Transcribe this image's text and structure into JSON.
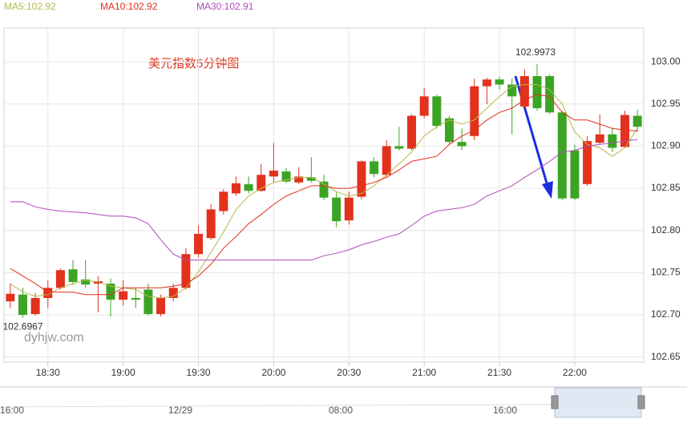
{
  "chart_data": {
    "type": "candlestick",
    "title": "美元指数5分钟图",
    "watermark": "dyhjw.com",
    "categories": [
      null,
      null,
      null,
      "18:30",
      null,
      null,
      null,
      null,
      null,
      "19:00",
      null,
      null,
      null,
      null,
      null,
      "19:30",
      null,
      null,
      null,
      null,
      null,
      "20:00",
      null,
      null,
      null,
      null,
      null,
      "20:30",
      null,
      null,
      null,
      null,
      null,
      "21:00",
      null,
      null,
      null,
      null,
      null,
      "21:30",
      null,
      null,
      null,
      null,
      null,
      "22:00",
      null,
      null,
      null,
      null,
      null
    ],
    "open": [
      102.716,
      102.724,
      102.701,
      102.72,
      102.732,
      102.754,
      102.742,
      102.737,
      102.737,
      102.718,
      102.72,
      102.73,
      102.701,
      102.72,
      102.732,
      102.772,
      102.791,
      102.823,
      102.844,
      102.855,
      102.847,
      102.864,
      102.87,
      102.857,
      102.863,
      102.858,
      102.839,
      102.812,
      102.84,
      102.882,
      102.866,
      102.9,
      102.897,
      102.936,
      102.959,
      102.933,
      102.905,
      102.912,
      102.971,
      102.979,
      102.973,
      102.947,
      102.983,
      102.983,
      102.94,
      102.895,
      102.855,
      102.904,
      102.914,
      102.899,
      102.936
    ],
    "high": [
      102.737,
      102.732,
      102.726,
      102.741,
      102.755,
      102.765,
      102.765,
      102.746,
      102.743,
      102.741,
      102.732,
      102.737,
      102.724,
      102.737,
      102.779,
      102.806,
      102.831,
      102.849,
      102.864,
      102.864,
      102.879,
      102.904,
      102.874,
      102.875,
      102.887,
      102.866,
      102.846,
      102.846,
      102.883,
      102.887,
      102.907,
      102.923,
      102.938,
      102.969,
      102.961,
      102.936,
      102.921,
      102.98,
      102.981,
      102.982,
      102.98,
      102.991,
      102.9973,
      102.985,
      102.942,
      102.902,
      102.912,
      102.938,
      102.921,
      102.942,
      102.943
    ],
    "low": [
      102.708,
      102.6967,
      102.699,
      102.708,
      102.73,
      102.736,
      102.732,
      102.703,
      102.698,
      102.711,
      102.708,
      102.699,
      102.698,
      102.716,
      102.73,
      102.768,
      102.789,
      102.819,
      102.841,
      102.844,
      102.846,
      102.857,
      102.856,
      102.855,
      102.857,
      102.836,
      102.804,
      102.807,
      102.837,
      102.863,
      102.864,
      102.895,
      102.895,
      102.933,
      102.921,
      102.902,
      102.895,
      102.907,
      102.95,
      102.967,
      102.914,
      102.945,
      102.942,
      102.938,
      102.836,
      102.836,
      102.853,
      102.902,
      102.893,
      102.898,
      102.917
    ],
    "close": [
      102.725,
      102.7,
      102.72,
      102.732,
      102.753,
      102.739,
      102.736,
      102.74,
      102.718,
      102.728,
      102.718,
      102.701,
      102.72,
      102.732,
      102.772,
      102.796,
      102.825,
      102.846,
      102.856,
      102.847,
      102.866,
      102.871,
      102.858,
      102.864,
      102.859,
      102.839,
      102.811,
      102.839,
      102.882,
      102.867,
      102.9,
      102.897,
      102.936,
      102.959,
      102.924,
      102.905,
      102.9,
      102.971,
      102.979,
      102.973,
      102.959,
      102.983,
      102.945,
      102.94,
      102.838,
      102.838,
      102.906,
      102.914,
      102.898,
      102.937,
      102.923
    ],
    "up_color": "#e2321d",
    "down_color": "#3ca424",
    "series": [
      {
        "name": "MA5:102.92",
        "color": "#b5b94a",
        "values": [
          102.737,
          102.727,
          102.722,
          102.724,
          102.732,
          102.737,
          102.741,
          102.739,
          102.734,
          102.732,
          102.73,
          102.722,
          102.72,
          102.722,
          102.732,
          102.751,
          102.774,
          102.798,
          102.825,
          102.841,
          102.85,
          102.857,
          102.86,
          102.863,
          102.863,
          102.855,
          102.846,
          102.841,
          102.844,
          102.853,
          102.866,
          102.879,
          102.893,
          102.912,
          102.923,
          102.931,
          102.926,
          102.931,
          102.945,
          102.959,
          102.971,
          102.973,
          102.973,
          102.967,
          102.95,
          102.917,
          102.902,
          102.898,
          102.888,
          102.898,
          102.921
        ]
      },
      {
        "name": "MA10:102.92",
        "color": "#e0301e",
        "values": [
          102.755,
          102.746,
          102.737,
          102.727,
          102.727,
          102.727,
          102.724,
          102.724,
          102.724,
          102.732,
          102.732,
          102.732,
          102.732,
          102.734,
          102.737,
          102.746,
          102.76,
          102.779,
          102.793,
          102.808,
          102.819,
          102.831,
          102.841,
          102.847,
          102.853,
          102.853,
          102.85,
          102.85,
          102.853,
          102.857,
          102.863,
          102.872,
          102.882,
          102.885,
          102.888,
          102.902,
          102.912,
          102.919,
          102.931,
          102.94,
          102.945,
          102.955,
          102.961,
          102.959,
          102.94,
          102.931,
          102.931,
          102.926,
          102.921,
          102.919,
          102.918
        ]
      },
      {
        "name": "MA30:102.91",
        "color": "#b04cb8",
        "values": [
          102.834,
          102.834,
          102.828,
          102.825,
          102.823,
          102.822,
          102.821,
          102.819,
          102.817,
          102.817,
          102.815,
          102.808,
          102.789,
          102.772,
          102.765,
          102.765,
          102.765,
          102.765,
          102.765,
          102.765,
          102.765,
          102.765,
          102.765,
          102.765,
          102.765,
          102.77,
          102.773,
          102.777,
          102.783,
          102.787,
          102.792,
          102.796,
          102.806,
          102.817,
          102.823,
          102.825,
          102.827,
          102.831,
          102.841,
          102.847,
          102.853,
          102.863,
          102.872,
          102.882,
          102.893,
          102.895,
          102.9,
          102.902,
          102.904,
          102.906,
          102.908
        ]
      }
    ],
    "ylim": [
      102.644,
      103.04
    ],
    "yticks": [
      102.65,
      {
        "value": 102.7,
        "label": "102.70"
      },
      102.75,
      {
        "value": 102.8,
        "label": "102.80"
      },
      102.85,
      {
        "value": 102.9,
        "label": "102.90"
      },
      102.95,
      {
        "value": 103,
        "label": "103.00"
      }
    ],
    "grid": true,
    "navigator_labels": [
      "16:00",
      "12/29",
      "08:00",
      "16:00"
    ]
  }
}
